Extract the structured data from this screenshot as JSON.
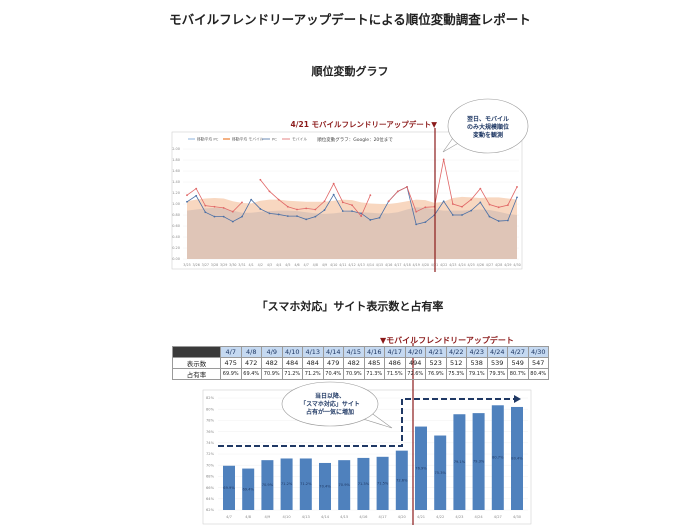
{
  "document": {
    "title": "モバイルフレンドリーアップデートによる順位変動調査レポート",
    "section1_title": "順位変動グラフ",
    "section2_title": "「スマホ対応」サイト表示数と占有率"
  },
  "colors": {
    "pc": "#4a6fa5",
    "mobile": "#e06666",
    "pc_avg_area": "#dcc3b6",
    "mobile_avg_area": "#f7d3b9",
    "update_line": "#8b1a1a",
    "bar": "#4f81bd",
    "table_header": "#c5d9f1"
  },
  "table": {
    "update_label": "▼モバイルフレンドリーアップデート",
    "dates": [
      "4/7",
      "4/8",
      "4/9",
      "4/10",
      "4/13",
      "4/14",
      "4/15",
      "4/16",
      "4/17",
      "4/20",
      "4/21",
      "4/22",
      "4/23",
      "4/24",
      "4/27",
      "4/30"
    ],
    "rows": [
      {
        "label": "表示数",
        "values": [
          "475",
          "472",
          "482",
          "484",
          "484",
          "479",
          "482",
          "485",
          "486",
          "494",
          "523",
          "512",
          "538",
          "539",
          "549",
          "547"
        ]
      },
      {
        "label": "占有率",
        "values": [
          "69.9%",
          "69.4%",
          "70.9%",
          "71.2%",
          "71.2%",
          "70.4%",
          "70.9%",
          "71.3%",
          "71.5%",
          "72.6%",
          "76.9%",
          "75.3%",
          "79.1%",
          "79.3%",
          "80.7%",
          "80.4%"
        ]
      }
    ]
  },
  "chart_data": [
    {
      "type": "line",
      "title": "順位変動グラフ：Google：20位まで",
      "annotation": "4/21 モバイルフレンドリーアップデート▼",
      "annotation_x": "4/21",
      "callout": "翌日、モバイルのみ大規模順位変動を観測",
      "x": [
        "3/25",
        "3/26",
        "3/27",
        "3/28",
        "3/29",
        "3/30",
        "3/31",
        "4/1",
        "4/2",
        "4/3",
        "4/4",
        "4/5",
        "4/6",
        "4/7",
        "4/8",
        "4/9",
        "4/10",
        "4/11",
        "4/12",
        "4/13",
        "4/14",
        "4/15",
        "4/16",
        "4/17",
        "4/18",
        "4/19",
        "4/20",
        "4/21",
        "4/22",
        "4/23",
        "4/24",
        "4/25",
        "4/26",
        "4/27",
        "4/28",
        "4/29",
        "4/30"
      ],
      "ylim": [
        0,
        2
      ],
      "yticks": [
        "0.00",
        "0.20",
        "0.40",
        "0.60",
        "0.80",
        "1.00",
        "1.20",
        "1.40",
        "1.60",
        "1.80",
        "2.00"
      ],
      "grid": true,
      "legend": "top-left",
      "series": [
        {
          "name": "移動平均 PC",
          "kind": "area",
          "values": [
            0.88,
            0.9,
            0.92,
            0.93,
            0.92,
            0.88,
            0.84,
            0.84,
            0.86,
            0.87,
            0.88,
            0.88,
            0.87,
            0.85,
            0.83,
            0.82,
            0.83,
            0.85,
            0.86,
            0.85,
            0.84,
            0.83,
            0.83,
            0.85,
            0.9,
            0.94,
            0.93,
            0.9,
            0.88,
            0.88,
            0.88,
            0.89,
            0.9,
            0.89,
            0.86,
            0.82,
            0.8
          ]
        },
        {
          "name": "移動平均 モバイル",
          "kind": "area",
          "values": [
            1.05,
            1.08,
            1.1,
            1.11,
            1.1,
            1.05,
            1.02,
            1.01,
            1.06,
            1.08,
            1.08,
            1.06,
            1.05,
            1.04,
            1.04,
            1.04,
            1.06,
            1.08,
            1.07,
            1.03,
            1.01,
            1.0,
            1.0,
            1.02,
            1.05,
            1.08,
            1.07,
            1.02,
            1.04,
            1.11,
            1.13,
            1.12,
            1.11,
            1.12,
            1.12,
            1.1,
            1.08
          ]
        },
        {
          "name": "PC",
          "kind": "line",
          "values": [
            1.04,
            1.15,
            0.85,
            0.77,
            0.77,
            0.68,
            0.77,
            1.08,
            0.91,
            0.83,
            0.81,
            0.78,
            0.78,
            0.72,
            0.77,
            0.89,
            1.17,
            0.87,
            0.87,
            0.83,
            0.71,
            0.75,
            1.05,
            1.23,
            1.31,
            0.63,
            0.67,
            0.8,
            1.05,
            0.8,
            0.8,
            0.88,
            1.03,
            0.77,
            0.69,
            0.7,
            1.12
          ]
        },
        {
          "name": "モバイル",
          "kind": "line",
          "values": [
            1.16,
            1.28,
            0.97,
            0.95,
            0.93,
            0.86,
            1.03,
            null,
            1.44,
            1.23,
            1.08,
            0.95,
            0.9,
            0.92,
            0.9,
            1.05,
            1.37,
            1.03,
            0.98,
            0.78,
            1.16,
            null,
            1.05,
            1.23,
            1.31,
            0.86,
            0.94,
            0.95,
            1.81,
            1.0,
            0.95,
            1.08,
            1.28,
            0.99,
            0.94,
            0.98,
            1.31
          ]
        }
      ]
    },
    {
      "type": "bar",
      "categories": [
        "4/7",
        "4/8",
        "4/9",
        "4/10",
        "4/13",
        "4/14",
        "4/15",
        "4/16",
        "4/17",
        "4/20",
        "4/21",
        "4/22",
        "4/23",
        "4/24",
        "4/27",
        "4/30"
      ],
      "values": [
        69.9,
        69.4,
        70.9,
        71.2,
        71.2,
        70.4,
        70.9,
        71.3,
        71.5,
        72.6,
        76.9,
        75.3,
        79.1,
        79.3,
        80.7,
        80.4
      ],
      "data_labels": [
        "69.9%",
        "69.4%",
        "70.9%",
        "71.2%",
        "71.2%",
        "70.4%",
        "70.9%",
        "71.3%",
        "71.5%",
        "72.6%",
        "76.9%",
        "75.3%",
        "79.1%",
        "79.3%",
        "80.7%",
        "80.4%"
      ],
      "ylim": [
        62,
        82
      ],
      "yticks": [
        "62%",
        "64%",
        "66%",
        "68%",
        "70%",
        "72%",
        "74%",
        "76%",
        "78%",
        "80%",
        "82%"
      ],
      "grid": true,
      "callout": "当日以降、「スマホ対応」サイト占有が一気に増加"
    }
  ]
}
